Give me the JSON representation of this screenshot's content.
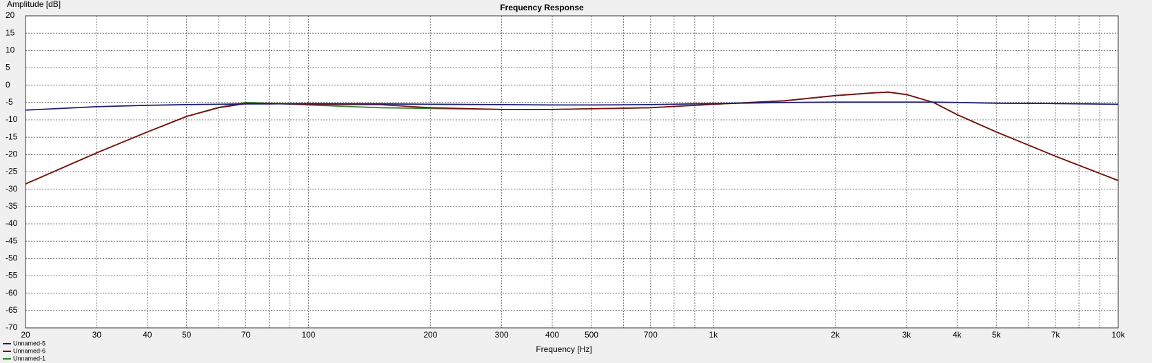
{
  "chart_data": {
    "type": "line",
    "title": "Frequency Response",
    "ylabel": "Amplitude [dB]",
    "xlabel": "Frequency [Hz]",
    "xscale": "log",
    "grid": true,
    "xlim": [
      20,
      10000
    ],
    "xticks": [
      20,
      30,
      40,
      50,
      70,
      100,
      200,
      300,
      400,
      500,
      700,
      {
        "value": 1000,
        "label": "1k"
      },
      {
        "value": 2000,
        "label": "2k"
      },
      {
        "value": 3000,
        "label": "3k"
      },
      {
        "value": 4000,
        "label": "4k"
      },
      {
        "value": 5000,
        "label": "5k"
      },
      {
        "value": 7000,
        "label": "7k"
      },
      {
        "value": 10000,
        "label": "10k"
      }
    ],
    "xminorticks": [
      60,
      80,
      90,
      600,
      800,
      900,
      6000,
      8000,
      9000
    ],
    "ylim": [
      -70,
      20
    ],
    "yticks": [
      20,
      15,
      10,
      5,
      0,
      -5,
      -10,
      -15,
      -20,
      -25,
      -30,
      -35,
      -40,
      -45,
      -50,
      -55,
      -60,
      -65,
      -70
    ],
    "x": [
      20,
      30,
      40,
      50,
      60,
      70,
      80,
      100,
      150,
      200,
      300,
      400,
      500,
      700,
      1000,
      1500,
      2000,
      2500,
      2700,
      3000,
      3500,
      4000,
      5000,
      7000,
      10000
    ],
    "series": [
      {
        "name": "Unnamed-5",
        "color": "#1c1c78",
        "values": [
          -7.2,
          -6.2,
          -5.8,
          -5.6,
          -5.5,
          -5.4,
          -5.4,
          -5.3,
          -5.4,
          -5.5,
          -5.6,
          -5.7,
          -5.7,
          -5.6,
          -5.3,
          -5.0,
          -4.9,
          -4.9,
          -4.9,
          -4.9,
          -4.9,
          -5.0,
          -5.2,
          -5.3,
          -5.5
        ]
      },
      {
        "name": "Unnamed-6",
        "color": "#7a1010",
        "values": [
          -28.5,
          -19.5,
          -13.5,
          -9.0,
          -6.5,
          -5.3,
          -5.3,
          -5.5,
          -5.6,
          -6.5,
          -7.0,
          -7.0,
          -6.8,
          -6.5,
          -5.5,
          -4.5,
          -3.0,
          -2.2,
          -2.0,
          -2.7,
          -5.0,
          -8.5,
          -13.5,
          -20.5,
          -27.5
        ]
      },
      {
        "name": "Unnamed-1",
        "color": "#2e7d2e",
        "values": [
          -28.5,
          -19.5,
          -13.5,
          -9.0,
          -6.4,
          -5.0,
          -5.2,
          -5.7,
          -6.5,
          -6.7,
          -7.0,
          -7.0,
          -6.8,
          -6.5,
          -5.5,
          -4.5,
          -3.0,
          -2.2,
          -2.0,
          -2.7,
          -5.0,
          -8.5,
          -13.5,
          -20.5,
          -27.5
        ]
      }
    ]
  }
}
